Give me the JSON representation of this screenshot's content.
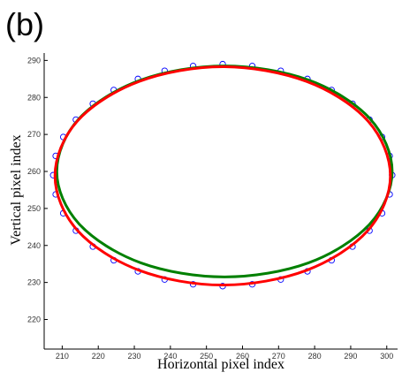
{
  "chart_data": {
    "type": "scatter",
    "panel_label": "(b)",
    "x_label": "Horizontal pixel index",
    "y_label": "Vertical pixel index",
    "xlim": [
      205,
      303
    ],
    "ylim": [
      212,
      292
    ],
    "xticks": [
      210,
      220,
      230,
      240,
      250,
      260,
      270,
      280,
      290,
      300
    ],
    "yticks": [
      220,
      230,
      240,
      250,
      260,
      270,
      280,
      290
    ],
    "series": [
      {
        "type": "scatter",
        "color": "#0000ff",
        "x": [
          301.5,
          300.8,
          298.7,
          295.2,
          290.5,
          284.7,
          278,
          270.6,
          262.7,
          254.5,
          246.3,
          238.4,
          231,
          224.3,
          218.5,
          213.8,
          210.3,
          208.2,
          207.5,
          208.2,
          210.3,
          213.8,
          218.5,
          224.3,
          231,
          238.4,
          246.3,
          254.5,
          262.7,
          270.6,
          278,
          284.7,
          290.5,
          295.2,
          298.7,
          300.8
        ],
        "values": [
          259,
          264.2,
          269.3,
          274,
          278.3,
          282,
          285,
          287.2,
          288.5,
          289,
          288.5,
          287.2,
          285,
          282,
          278.3,
          274,
          269.3,
          264.2,
          259,
          253.8,
          248.7,
          244,
          239.7,
          236,
          233,
          230.8,
          229.5,
          229,
          229.5,
          230.8,
          233,
          236,
          239.7,
          244,
          248.7,
          253.8
        ]
      },
      {
        "type": "line",
        "color": "#008000",
        "x": [
          301.5,
          295.3,
          278.3,
          255,
          231.8,
          214.7,
          208.5,
          214.7,
          231.8,
          255,
          278.3,
          295.3,
          301.5
        ],
        "values": [
          260,
          274.3,
          284.7,
          288.5,
          284.7,
          274.3,
          260,
          245.8,
          235.3,
          231.5,
          235.3,
          245.8,
          260
        ]
      },
      {
        "type": "line",
        "color": "#ff0000",
        "x": [
          301,
          294.8,
          277.8,
          254.5,
          231.3,
          214.2,
          208,
          214.2,
          231.3,
          254.5,
          277.8,
          294.8,
          301
        ],
        "values": [
          258.8,
          273.6,
          284.3,
          288.3,
          284.3,
          273.6,
          258.8,
          244.1,
          233.3,
          229.3,
          233.3,
          244.1,
          258.8
        ]
      }
    ]
  }
}
